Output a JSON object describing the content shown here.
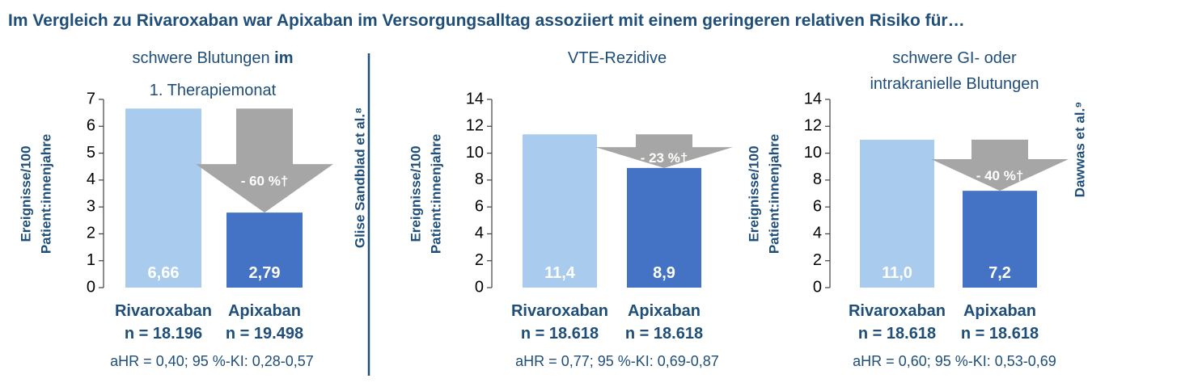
{
  "headline": "Im Vergleich zu Rivaroxaban war Apixaban im Versorgungsalltag assoziiert mit einem geringeren relativen Risiko für…",
  "colors": {
    "text_dark": "#1f4e79",
    "rivaroxaban_bar": "#a9ccee",
    "apixaban_bar": "#4472c4",
    "arrow": "#a6a6a6",
    "bar_label": "#ffffff"
  },
  "sources": {
    "left": "Glise Sandblad et al.⁸",
    "right": "Dawwas et al.⁹"
  },
  "chart_data": [
    {
      "type": "bar",
      "title": "schwere Blutungen im",
      "title_bold_part": "im",
      "subtitle": "1. Therapiemonat",
      "ylabel": "Ereignisse/100",
      "ylabel2": "Patient:innenjahre",
      "ylim": [
        0,
        7
      ],
      "yticks": [
        0,
        1,
        2,
        3,
        4,
        5,
        6,
        7
      ],
      "categories": [
        "Rivaroxaban",
        "Apixaban"
      ],
      "n_labels": [
        "n = 18.196",
        "n = 19.498"
      ],
      "values": [
        6.66,
        2.79
      ],
      "value_labels": [
        "6,66",
        "2,79"
      ],
      "reduction_label": "- 60 %†",
      "stat": "aHR = 0,40; 95 %-KI: 0,28-0,57"
    },
    {
      "type": "bar",
      "title": "VTE-Rezidive",
      "subtitle": "",
      "ylabel": "Ereignisse/100",
      "ylabel2": "Patient:innenjahre",
      "ylim": [
        0,
        14
      ],
      "yticks": [
        0,
        2,
        4,
        6,
        8,
        10,
        12,
        14
      ],
      "categories": [
        "Rivaroxaban",
        "Apixaban"
      ],
      "n_labels": [
        "n = 18.618",
        "n = 18.618"
      ],
      "values": [
        11.4,
        8.9
      ],
      "value_labels": [
        "11,4",
        "8,9"
      ],
      "reduction_label": "- 23 %†",
      "stat": "aHR = 0,77; 95 %-KI: 0,69-0,87"
    },
    {
      "type": "bar",
      "title": "schwere GI- oder",
      "subtitle": "intrakranielle Blutungen",
      "ylabel": "Ereignisse/100",
      "ylabel2": "Patient:innenjahre",
      "ylim": [
        0,
        14
      ],
      "yticks": [
        0,
        2,
        4,
        6,
        8,
        10,
        12,
        14
      ],
      "categories": [
        "Rivaroxaban",
        "Apixaban"
      ],
      "n_labels": [
        "n = 18.618",
        "n = 18.618"
      ],
      "values": [
        11.0,
        7.2
      ],
      "value_labels": [
        "11,0",
        "7,2"
      ],
      "reduction_label": "- 40 %†",
      "stat": "aHR = 0,60; 95 %-KI: 0,53-0,69"
    }
  ]
}
